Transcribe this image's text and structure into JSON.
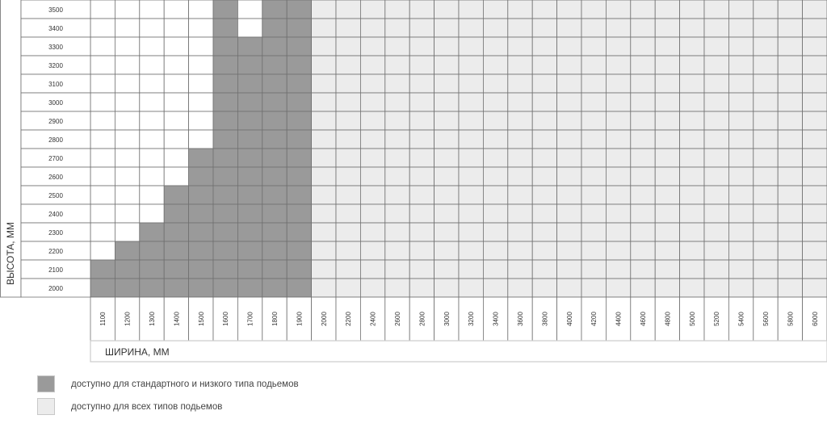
{
  "chart_data": {
    "type": "heatmap",
    "xlabel": "ШИРИНА, ММ",
    "ylabel": "ВЫСОТА, ММ",
    "x_ticks": [
      1100,
      1200,
      1300,
      1400,
      1500,
      1600,
      1700,
      1800,
      1900,
      2000,
      2200,
      2400,
      2600,
      2800,
      3000,
      3200,
      3400,
      3600,
      3800,
      4000,
      4200,
      4400,
      4600,
      4800,
      5000,
      5200,
      5400,
      5600,
      5800,
      6000
    ],
    "y_ticks": [
      3500,
      3400,
      3300,
      3200,
      3100,
      3000,
      2900,
      2800,
      2700,
      2600,
      2500,
      2400,
      2300,
      2200,
      2100,
      2000
    ],
    "standard_low_max_height": {
      "1100": 2100,
      "1200": 2200,
      "1300": 2300,
      "1400": 2500,
      "1500": 2700,
      "1600": 3500,
      "1700": 3300,
      "1800": 3500,
      "1900": 3500
    },
    "all_types_from_width": 2000,
    "colors": {
      "standard_low": "#9a9a9a",
      "all_types": "#ececec",
      "unavailable": "#ffffff",
      "grid": "#707070"
    },
    "legend": [
      {
        "label": "доступно для стандартного и низкого типа подьемов",
        "color": "#9a9a9a"
      },
      {
        "label": "доступно для всех типов подьемов",
        "color": "#ececec"
      }
    ]
  }
}
